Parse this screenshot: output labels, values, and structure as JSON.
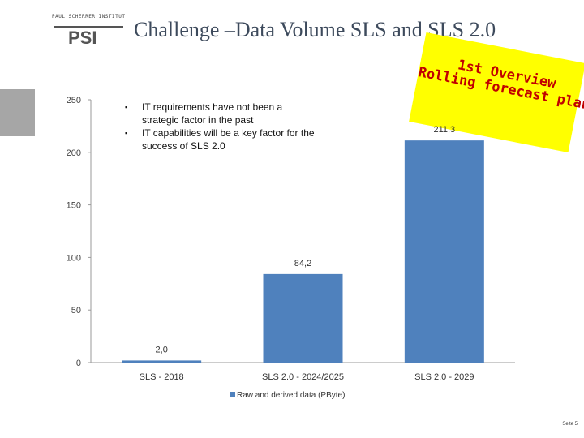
{
  "header": {
    "logo_caption": "PAUL SCHERRER INSTITUT",
    "logo_text": "PSI",
    "title": "Challenge –Data Volume SLS and SLS 2.0"
  },
  "bullets": [
    "IT requirements have not been a strategic factor in the past",
    "IT capabilities will be a key factor for the success of SLS 2.0"
  ],
  "sticky_note": {
    "line1": "1st Overview",
    "line2": "Rolling forecast planned",
    "bg_color": "#ffff00",
    "text_color": "#c00000"
  },
  "chart_data": {
    "type": "bar",
    "categories": [
      "SLS - 2018",
      "SLS 2.0 - 2024/2025",
      "SLS 2.0 - 2029"
    ],
    "series": [
      {
        "name": "Raw and derived data (PByte)",
        "values": [
          2.0,
          84.2,
          211.3
        ],
        "color": "#4f81bd"
      }
    ],
    "data_labels": [
      "2,0",
      "84,2",
      "211,3"
    ],
    "y_ticks": [
      0,
      50,
      100,
      150,
      200,
      250
    ],
    "ylim": [
      0,
      250
    ],
    "title": "",
    "xlabel": "",
    "ylabel": "",
    "legend_position": "bottom",
    "grid": false
  },
  "footer": {
    "page_label": "Seite 5"
  }
}
